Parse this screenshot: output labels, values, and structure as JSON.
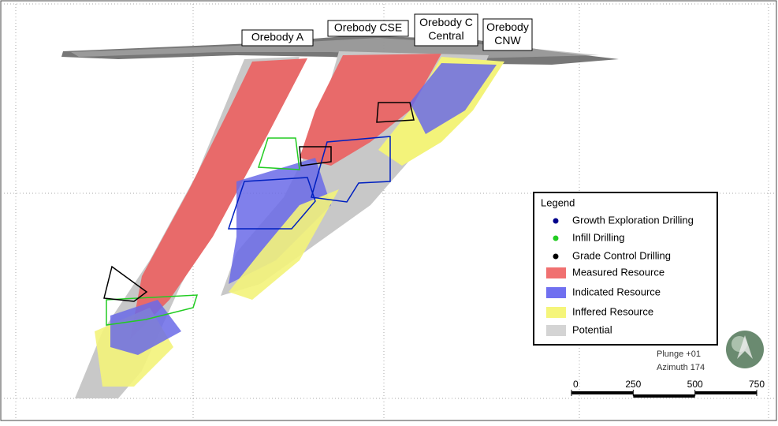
{
  "labels": {
    "orebodies": [
      {
        "lines": [
          "Orebody A"
        ]
      },
      {
        "lines": [
          "Orebody CSE"
        ]
      },
      {
        "lines": [
          "Orebody C",
          "Central"
        ]
      },
      {
        "lines": [
          "Orebody",
          "CNW"
        ]
      }
    ]
  },
  "legend": {
    "title": "Legend",
    "items": [
      {
        "label": "Growth Exploration Drilling",
        "kind": "dot",
        "color": "#00008b"
      },
      {
        "label": "Infill Drilling",
        "kind": "dot",
        "color": "#22cc22"
      },
      {
        "label": "Grade Control Drilling",
        "kind": "dot",
        "color": "#000000"
      },
      {
        "label": "Measured Resource",
        "kind": "swatch",
        "color": "#f07070"
      },
      {
        "label": "Indicated Resource",
        "kind": "swatch",
        "color": "#7070f0"
      },
      {
        "label": "Inffered Resource",
        "kind": "swatch",
        "color": "#f5f57a"
      },
      {
        "label": "Potential",
        "kind": "swatch",
        "color": "#d4d4d4"
      }
    ]
  },
  "view": {
    "plunge": "Plunge +01",
    "azimuth": "Azimuth 174"
  },
  "scale_bar": {
    "ticks": [
      0,
      250,
      500,
      750
    ]
  }
}
